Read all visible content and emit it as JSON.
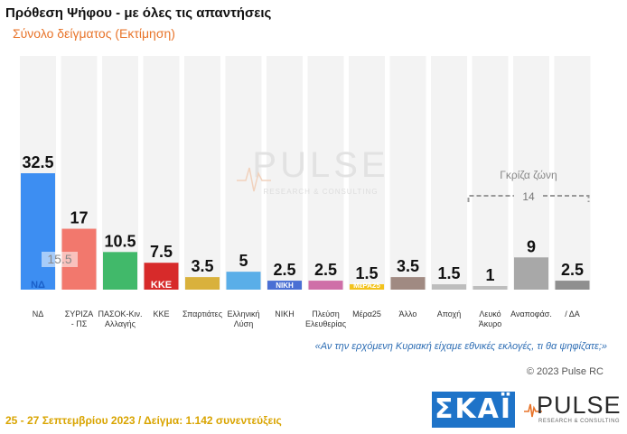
{
  "header": {
    "title": "Πρόθεση Ψήφου - με όλες τις απαντήσεις",
    "subtitle": "Σύνολο δείγματος   (Εκτίμηση)"
  },
  "chart_data": {
    "type": "bar",
    "categories": [
      "ΝΔ",
      "ΣΥΡΙΖΑ - ΠΣ",
      "ΠΑΣΟΚ-Κιν. Αλλαγής",
      "ΚΚΕ",
      "Σπαρτιάτες",
      "Ελληνική Λύση",
      "ΝΙΚΗ",
      "Πλεύση Ελευθερίας",
      "Μέρα25",
      "Άλλο",
      "Αποχή",
      "Λευκό Άκυρο",
      "Αναποφάσ.",
      "/ ΔΑ"
    ],
    "category_lines": [
      [
        "ΝΔ"
      ],
      [
        "ΣΥΡΙΖΑ",
        "- ΠΣ"
      ],
      [
        "ΠΑΣΟΚ-Κιν.",
        "Αλλαγής"
      ],
      [
        "ΚΚΕ"
      ],
      [
        "Σπαρτιάτες"
      ],
      [
        "Ελληνική",
        "Λύση"
      ],
      [
        "ΝΙΚΗ"
      ],
      [
        "Πλεύση",
        "Ελευθερίας"
      ],
      [
        "Μέρα25"
      ],
      [
        "Άλλο"
      ],
      [
        "Αποχή"
      ],
      [
        "Λευκό",
        "Άκυρο"
      ],
      [
        "Αναποφάσ."
      ],
      [
        "/ ΔΑ"
      ]
    ],
    "values": [
      32.5,
      17,
      10.5,
      7.5,
      3.5,
      5,
      2.5,
      2.5,
      1.5,
      3.5,
      1.5,
      1,
      9,
      2.5
    ],
    "value_labels": [
      "32.5",
      "17",
      "10.5",
      "7.5",
      "3.5",
      "5",
      "2.5",
      "2.5",
      "1.5",
      "3.5",
      "1.5",
      "1",
      "9",
      "2.5"
    ],
    "colors": [
      "#3d8ef2",
      "#f2786d",
      "#41b96a",
      "#d72a2a",
      "#d9b13c",
      "#5aaee8",
      "#4a6fd4",
      "#cf6fa8",
      "#f2c21d",
      "#a08a82",
      "#bdbdbd",
      "#bdbdbd",
      "#a8a8a8",
      "#8f8f8f"
    ],
    "party_marks": [
      "ΝΔ",
      "",
      "",
      "ΚΚΕ",
      "",
      "",
      "ΝΙΚΗ",
      "",
      "ΜέΡΑ25",
      "",
      "",
      "",
      "",
      ""
    ],
    "inner_label": {
      "text": "15.5",
      "bar_index": 0
    },
    "grey_zone": {
      "label": "Γκρίζα ζώνη",
      "value": "14",
      "from_index": 11,
      "to_index": 13
    },
    "ylim": [
      0,
      40
    ]
  },
  "watermark": {
    "word": "PULSE",
    "tagline": "RESEARCH & CONSULTING"
  },
  "question": "«Αν την ερχόμενη Κυριακή είχαμε εθνικές εκλογές, τι θα ψηφίζατε;»",
  "copyright": "© 2023 Pulse RC",
  "footer_note": "25 - 27 Σεπτεμβρίου  2023  /  Δείγμα:  1.142 συνεντεύξεις",
  "logos": {
    "skai": "ΣΚΑΪ",
    "pulse_word": "PULSE",
    "pulse_tagline": "RESEARCH & CONSULTING"
  }
}
